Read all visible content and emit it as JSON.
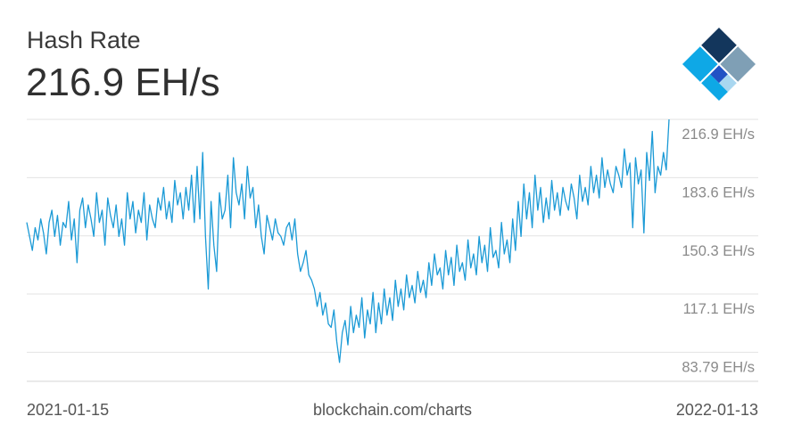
{
  "header": {
    "title": "Hash Rate",
    "value": "216.9 EH/s"
  },
  "footer": {
    "start_date": "2021-01-15",
    "source": "blockchain.com/charts",
    "end_date": "2022-01-13"
  },
  "colors": {
    "line": "#1b9ad6",
    "grid": "#e3e3e3",
    "logo_dark": "#13365c",
    "logo_gray": "#7f9fb5",
    "logo_blue": "#2252c4",
    "logo_light": "#a9d7f0",
    "logo_cyan": "#0ea8e6"
  },
  "chart_data": {
    "type": "line",
    "x_start": "2021-01-15",
    "x_end": "2022-01-13",
    "ylim": [
      67.2,
      216.9
    ],
    "yticks": [
      83.79,
      117.1,
      150.3,
      183.6,
      216.9
    ],
    "ytick_labels": [
      "83.79 EH/s",
      "117.1 EH/s",
      "150.3 EH/s",
      "183.6 EH/s",
      "216.9 EH/s"
    ],
    "grid": true,
    "series": [
      {
        "values": [
          158,
          150,
          142,
          155,
          148,
          160,
          152,
          140,
          158,
          165,
          150,
          162,
          145,
          158,
          155,
          170,
          148,
          160,
          135,
          165,
          172,
          155,
          168,
          160,
          150,
          175,
          158,
          165,
          145,
          172,
          162,
          155,
          168,
          150,
          160,
          145,
          175,
          160,
          170,
          152,
          165,
          158,
          175,
          148,
          168,
          160,
          155,
          172,
          165,
          178,
          160,
          170,
          158,
          182,
          168,
          175,
          160,
          178,
          165,
          185,
          158,
          190,
          160,
          198,
          150,
          120,
          170,
          145,
          130,
          175,
          160,
          165,
          185,
          155,
          195,
          175,
          168,
          180,
          160,
          190,
          172,
          178,
          155,
          168,
          150,
          140,
          162,
          155,
          148,
          160,
          152,
          150,
          145,
          155,
          158,
          148,
          160,
          140,
          130,
          135,
          142,
          128,
          125,
          120,
          110,
          118,
          105,
          112,
          100,
          98,
          108,
          90,
          78,
          95,
          102,
          88,
          110,
          95,
          105,
          98,
          115,
          92,
          108,
          100,
          118,
          95,
          112,
          100,
          120,
          105,
          115,
          102,
          125,
          110,
          120,
          108,
          128,
          115,
          122,
          112,
          130,
          118,
          125,
          115,
          135,
          122,
          140,
          128,
          132,
          120,
          142,
          128,
          138,
          122,
          145,
          130,
          135,
          125,
          148,
          132,
          140,
          128,
          150,
          135,
          145,
          130,
          155,
          138,
          142,
          132,
          158,
          140,
          148,
          135,
          160,
          142,
          170,
          150,
          180,
          160,
          175,
          155,
          185,
          165,
          178,
          158,
          172,
          160,
          182,
          165,
          175,
          162,
          178,
          170,
          165,
          180,
          172,
          160,
          185,
          170,
          178,
          168,
          190,
          175,
          185,
          172,
          195,
          178,
          188,
          180,
          175,
          190,
          185,
          178,
          200,
          185,
          192,
          155,
          195,
          180,
          188,
          152,
          198,
          182,
          210,
          175,
          190,
          185,
          198,
          188,
          216.9
        ]
      }
    ]
  }
}
